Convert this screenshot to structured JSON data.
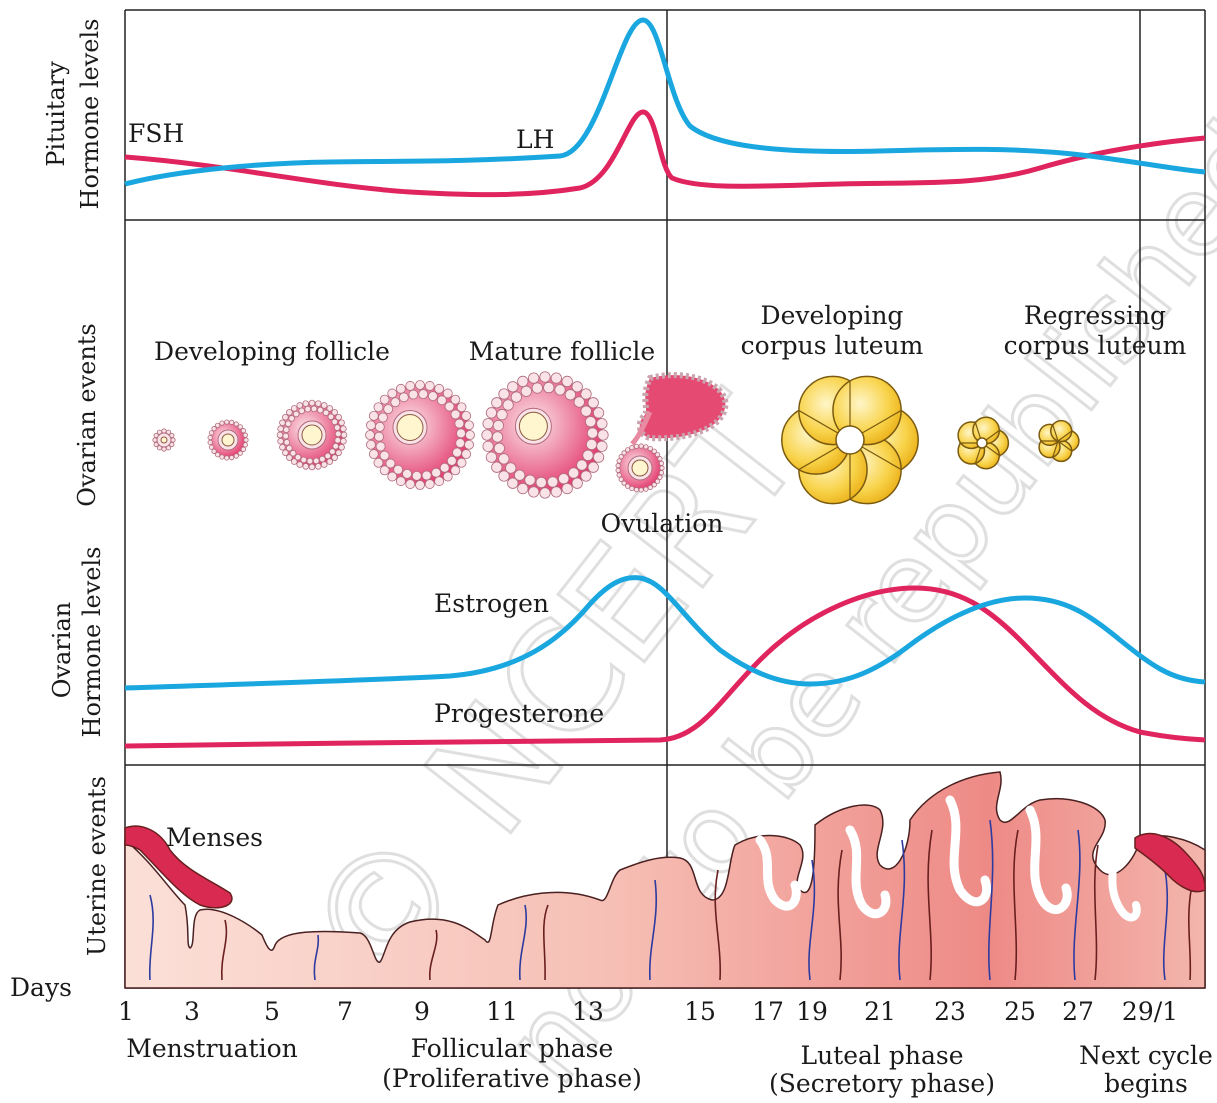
{
  "pituitary": {
    "axis_label_line1": "Pituitary",
    "axis_label_line2": "Hormone levels",
    "fsh_label": "FSH",
    "lh_label": "LH"
  },
  "ovarian_events": {
    "axis_label": "Ovarian events",
    "developing_follicle": "Developing follicle",
    "mature_follicle": "Mature follicle",
    "ovulation": "Ovulation",
    "developing_cl_line1": "Developing",
    "developing_cl_line2": "corpus luteum",
    "regressing_cl_line1": "Regressing",
    "regressing_cl_line2": "corpus luteum"
  },
  "ovarian_hormones": {
    "axis_label_line1": "Ovarian",
    "axis_label_line2": "Hormone levels",
    "estrogen_label": "Estrogen",
    "progesterone_label": "Progesterone"
  },
  "uterine": {
    "axis_label": "Uterine events",
    "menses_label": "Menses"
  },
  "days": {
    "label": "Days",
    "ticks": [
      "1",
      "3",
      "5",
      "7",
      "9",
      "11",
      "13",
      "15",
      "17",
      "19",
      "21",
      "23",
      "25",
      "27",
      "29/1"
    ]
  },
  "phases": {
    "menstruation": "Menstruation",
    "follicular_line1": "Follicular phase",
    "follicular_line2": "(Proliferative phase)",
    "luteal_line1": "Luteal phase",
    "luteal_line2": "(Secretory phase)",
    "next_line1": "Next cycle",
    "next_line2": "begins"
  },
  "watermark": "© NCERT",
  "watermark2": "not to be republished",
  "colors": {
    "fsh": "#e0245e",
    "lh": "#1aa7e0",
    "estrogen": "#1aa7e0",
    "progesterone": "#e0245e",
    "endometrium": "#f2a5a0",
    "corpus_luteum": "#f4c21c",
    "follicle": "#e0245e"
  }
}
